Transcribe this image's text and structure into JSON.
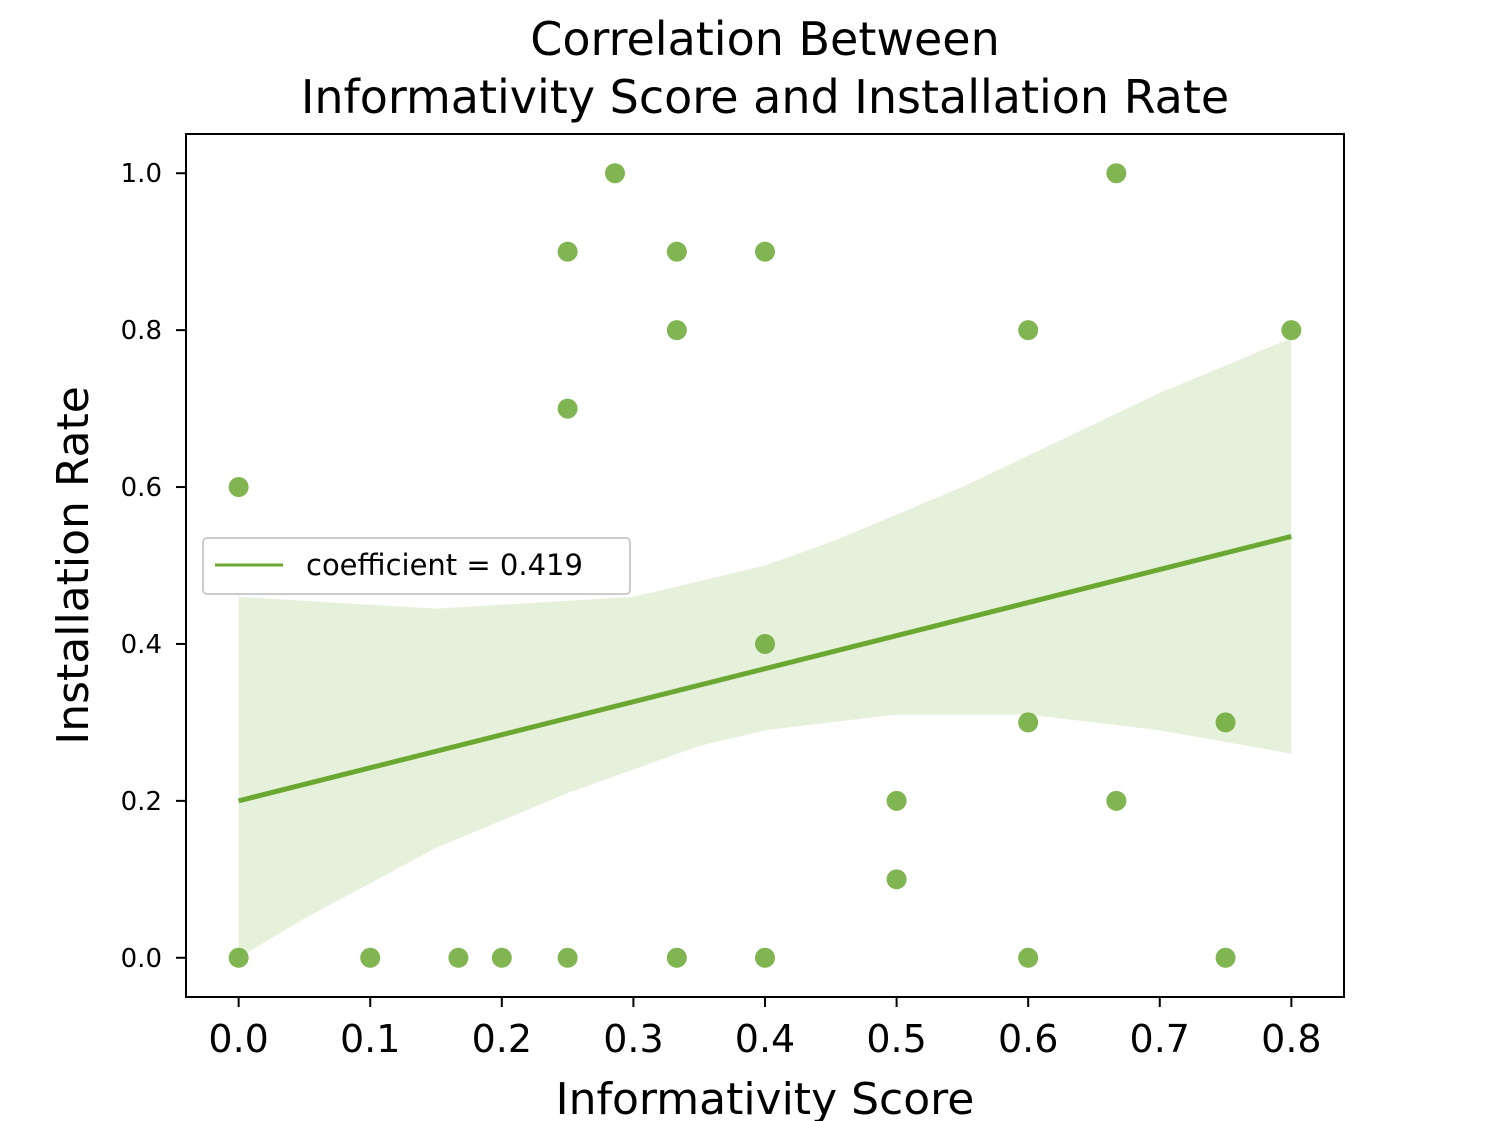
{
  "chart_data": {
    "type": "scatter",
    "title_lines": [
      "Correlation Between",
      "Informativity Score and Installation Rate"
    ],
    "xlabel": "Informativity Score",
    "ylabel": "Installation Rate",
    "xlim": [
      -0.04,
      0.84
    ],
    "ylim": [
      -0.05,
      1.05
    ],
    "xticks": [
      0.0,
      0.1,
      0.2,
      0.3,
      0.4,
      0.5,
      0.6,
      0.7,
      0.8
    ],
    "xtick_labels": [
      "0.0",
      "0.1",
      "0.2",
      "0.3",
      "0.4",
      "0.5",
      "0.6",
      "0.7",
      "0.8"
    ],
    "yticks": [
      0.0,
      0.2,
      0.4,
      0.6,
      0.8,
      1.0
    ],
    "ytick_labels": [
      "0.0",
      "0.2",
      "0.4",
      "0.6",
      "0.8",
      "1.0"
    ],
    "grid": false,
    "legend_position": "center-left",
    "points": [
      {
        "x": 0.0,
        "y": 0.6
      },
      {
        "x": 0.0,
        "y": 0.0
      },
      {
        "x": 0.1,
        "y": 0.0
      },
      {
        "x": 0.167,
        "y": 0.0
      },
      {
        "x": 0.2,
        "y": 0.0
      },
      {
        "x": 0.25,
        "y": 0.9
      },
      {
        "x": 0.25,
        "y": 0.7
      },
      {
        "x": 0.25,
        "y": 0.0
      },
      {
        "x": 0.286,
        "y": 1.0
      },
      {
        "x": 0.333,
        "y": 0.9
      },
      {
        "x": 0.333,
        "y": 0.8
      },
      {
        "x": 0.333,
        "y": 0.0
      },
      {
        "x": 0.4,
        "y": 0.9
      },
      {
        "x": 0.4,
        "y": 0.4
      },
      {
        "x": 0.4,
        "y": 0.0
      },
      {
        "x": 0.5,
        "y": 0.2
      },
      {
        "x": 0.5,
        "y": 0.1
      },
      {
        "x": 0.6,
        "y": 0.8
      },
      {
        "x": 0.6,
        "y": 0.3
      },
      {
        "x": 0.6,
        "y": 0.0
      },
      {
        "x": 0.667,
        "y": 1.0
      },
      {
        "x": 0.667,
        "y": 0.2
      },
      {
        "x": 0.75,
        "y": 0.3
      },
      {
        "x": 0.75,
        "y": 0.0
      },
      {
        "x": 0.8,
        "y": 0.8
      }
    ],
    "regression": {
      "label": "coefficient = 0.419",
      "x": [
        0.0,
        0.8
      ],
      "y": [
        0.2,
        0.537
      ]
    },
    "confidence_band": {
      "x": [
        0.0,
        0.05,
        0.1,
        0.15,
        0.2,
        0.25,
        0.3,
        0.35,
        0.4,
        0.45,
        0.5,
        0.55,
        0.6,
        0.65,
        0.7,
        0.75,
        0.8
      ],
      "upper": [
        0.46,
        0.455,
        0.45,
        0.445,
        0.45,
        0.455,
        0.46,
        0.48,
        0.5,
        0.53,
        0.565,
        0.6,
        0.64,
        0.68,
        0.72,
        0.755,
        0.79
      ],
      "lower": [
        0.0,
        0.05,
        0.095,
        0.14,
        0.175,
        0.21,
        0.24,
        0.27,
        0.29,
        0.3,
        0.31,
        0.31,
        0.31,
        0.3,
        0.29,
        0.275,
        0.26
      ]
    },
    "colors": {
      "point": "#6aa832",
      "line": "#6aa832",
      "band": "#e6f1dc",
      "axes": "#000000",
      "legend_border": "#cccccc"
    }
  }
}
